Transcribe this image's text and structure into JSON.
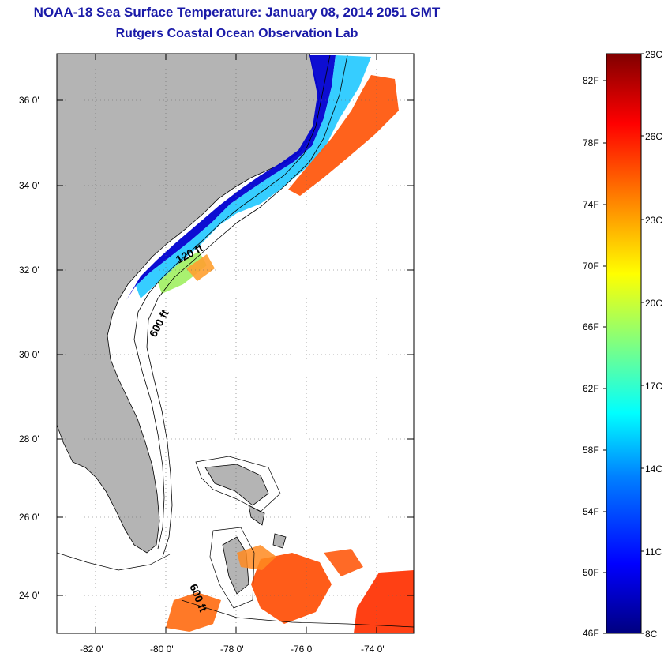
{
  "title": "NOAA-18 Sea Surface Temperature:  January 08, 2014 2051 GMT",
  "subtitle": "Rutgers Coastal Ocean Observation Lab",
  "map": {
    "lon_ticks": [
      "-82 0'",
      "-80 0'",
      "-78 0'",
      "-76 0'",
      "-74 0'"
    ],
    "lat_ticks": [
      "36 0'",
      "34 0'",
      "32 0'",
      "30 0'",
      "28 0'",
      "26 0'",
      "24 0'"
    ],
    "contours": [
      "120 ft",
      "600 ft",
      "600 ft"
    ],
    "land_color": "#b4b4b4"
  },
  "colorbar": {
    "celsius": [
      "29C",
      "26C",
      "23C",
      "20C",
      "17C",
      "14C",
      "11C",
      "8C"
    ],
    "fahrenheit": [
      "82F",
      "78F",
      "74F",
      "70F",
      "66F",
      "62F",
      "58F",
      "54F",
      "50F",
      "46F"
    ],
    "colors": [
      "#000080",
      "#0000ff",
      "#0080ff",
      "#00ffff",
      "#80ff80",
      "#ffff00",
      "#ff8000",
      "#ff0000",
      "#800000"
    ]
  }
}
